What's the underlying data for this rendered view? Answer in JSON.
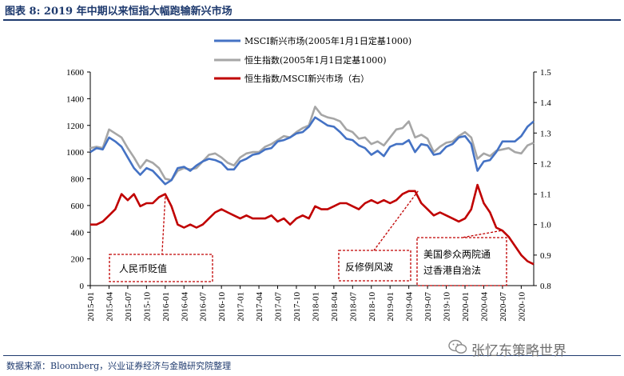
{
  "figure": {
    "title": "图表 8: 2019 年中期以来恒指大幅跑输新兴市场",
    "source": "数据来源：Bloomberg，兴业证券经济与金融研究院整理",
    "watermark": "张忆东策略世界"
  },
  "chart_data": {
    "type": "line",
    "title": "",
    "xlabel": "",
    "ylabel": "",
    "ylim": [
      0,
      1600
    ],
    "y2lim": [
      0.8,
      1.5
    ],
    "yticks": [
      0,
      200,
      400,
      600,
      800,
      1000,
      1200,
      1400,
      1600
    ],
    "y2ticks": [
      0.8,
      0.9,
      1.0,
      1.1,
      1.2,
      1.3,
      1.4,
      1.5
    ],
    "y2tick_labels": [
      "0.8",
      "0.9",
      "1.0",
      "1.1",
      "1.2",
      "1.3",
      "1.4",
      "1.5"
    ],
    "xticks": [
      "2015-01",
      "2015-04",
      "2015-07",
      "2015-10",
      "2016-01",
      "2016-04",
      "2016-07",
      "2016-10",
      "2017-01",
      "2017-04",
      "2017-07",
      "2017-10",
      "2018-01",
      "2018-04",
      "2018-07",
      "2018-10",
      "2019-01",
      "2019-04",
      "2019-07",
      "2019-10",
      "2020-01",
      "2020-04",
      "2020-07",
      "2020-10"
    ],
    "grid": false,
    "legend_position": "top-center",
    "colors": {
      "msci": "#4472c4",
      "hsi": "#a6a6a6",
      "ratio": "#c00000",
      "annotation": "#c00000"
    },
    "series": [
      {
        "name": "MSCI新兴市场(2005年1月1日定基1000)",
        "axis": "left",
        "x": [
          "2015-01",
          "2015-02",
          "2015-03",
          "2015-04",
          "2015-05",
          "2015-06",
          "2015-07",
          "2015-08",
          "2015-09",
          "2015-10",
          "2015-11",
          "2015-12",
          "2016-01",
          "2016-02",
          "2016-03",
          "2016-04",
          "2016-05",
          "2016-06",
          "2016-07",
          "2016-08",
          "2016-09",
          "2016-10",
          "2016-11",
          "2016-12",
          "2017-01",
          "2017-02",
          "2017-03",
          "2017-04",
          "2017-05",
          "2017-06",
          "2017-07",
          "2017-08",
          "2017-09",
          "2017-10",
          "2017-11",
          "2017-12",
          "2018-01",
          "2018-02",
          "2018-03",
          "2018-04",
          "2018-05",
          "2018-06",
          "2018-07",
          "2018-08",
          "2018-09",
          "2018-10",
          "2018-11",
          "2018-12",
          "2019-01",
          "2019-02",
          "2019-03",
          "2019-04",
          "2019-05",
          "2019-06",
          "2019-07",
          "2019-08",
          "2019-09",
          "2019-10",
          "2019-11",
          "2019-12",
          "2020-01",
          "2020-02",
          "2020-03",
          "2020-04",
          "2020-05",
          "2020-06",
          "2020-07",
          "2020-08",
          "2020-09",
          "2020-10",
          "2020-11",
          "2020-12"
        ],
        "values": [
          1000,
          1030,
          1020,
          1110,
          1080,
          1040,
          960,
          880,
          830,
          880,
          860,
          810,
          760,
          790,
          880,
          890,
          860,
          900,
          930,
          950,
          940,
          920,
          870,
          870,
          930,
          950,
          980,
          990,
          1020,
          1030,
          1080,
          1090,
          1110,
          1140,
          1150,
          1190,
          1260,
          1230,
          1200,
          1190,
          1150,
          1100,
          1090,
          1050,
          1030,
          980,
          1010,
          970,
          1040,
          1060,
          1060,
          1090,
          1000,
          1060,
          1050,
          980,
          990,
          1040,
          1060,
          1110,
          1120,
          1060,
          860,
          930,
          940,
          1000,
          1080,
          1080,
          1080,
          1120,
          1190,
          1230
        ]
      },
      {
        "name": "恒生指数(2005年1月1日定基1000)",
        "axis": "left",
        "x": [
          "2015-01",
          "2015-02",
          "2015-03",
          "2015-04",
          "2015-05",
          "2015-06",
          "2015-07",
          "2015-08",
          "2015-09",
          "2015-10",
          "2015-11",
          "2015-12",
          "2016-01",
          "2016-02",
          "2016-03",
          "2016-04",
          "2016-05",
          "2016-06",
          "2016-07",
          "2016-08",
          "2016-09",
          "2016-10",
          "2016-11",
          "2016-12",
          "2017-01",
          "2017-02",
          "2017-03",
          "2017-04",
          "2017-05",
          "2017-06",
          "2017-07",
          "2017-08",
          "2017-09",
          "2017-10",
          "2017-11",
          "2017-12",
          "2018-01",
          "2018-02",
          "2018-03",
          "2018-04",
          "2018-05",
          "2018-06",
          "2018-07",
          "2018-08",
          "2018-09",
          "2018-10",
          "2018-11",
          "2018-12",
          "2019-01",
          "2019-02",
          "2019-03",
          "2019-04",
          "2019-05",
          "2019-06",
          "2019-07",
          "2019-08",
          "2019-09",
          "2019-10",
          "2019-11",
          "2019-12",
          "2020-01",
          "2020-02",
          "2020-03",
          "2020-04",
          "2020-05",
          "2020-06",
          "2020-07",
          "2020-08",
          "2020-09",
          "2020-10",
          "2020-11",
          "2020-12"
        ],
        "values": [
          1030,
          1040,
          1030,
          1170,
          1140,
          1110,
          1030,
          960,
          880,
          940,
          920,
          880,
          800,
          790,
          860,
          880,
          870,
          880,
          930,
          980,
          990,
          960,
          920,
          900,
          960,
          990,
          1000,
          1000,
          1040,
          1060,
          1090,
          1120,
          1110,
          1150,
          1180,
          1200,
          1340,
          1280,
          1260,
          1250,
          1230,
          1170,
          1150,
          1100,
          1110,
          1060,
          1080,
          1050,
          1110,
          1170,
          1180,
          1230,
          1110,
          1130,
          1100,
          1000,
          1040,
          1070,
          1080,
          1120,
          1150,
          1110,
          950,
          990,
          970,
          1010,
          1020,
          1030,
          1000,
          990,
          1050,
          1070
        ]
      },
      {
        "name": "恒生指数/MSCI新兴市场（右）",
        "axis": "right",
        "x": [
          "2015-01",
          "2015-02",
          "2015-03",
          "2015-04",
          "2015-05",
          "2015-06",
          "2015-07",
          "2015-08",
          "2015-09",
          "2015-10",
          "2015-11",
          "2015-12",
          "2016-01",
          "2016-02",
          "2016-03",
          "2016-04",
          "2016-05",
          "2016-06",
          "2016-07",
          "2016-08",
          "2016-09",
          "2016-10",
          "2016-11",
          "2016-12",
          "2017-01",
          "2017-02",
          "2017-03",
          "2017-04",
          "2017-05",
          "2017-06",
          "2017-07",
          "2017-08",
          "2017-09",
          "2017-10",
          "2017-11",
          "2017-12",
          "2018-01",
          "2018-02",
          "2018-03",
          "2018-04",
          "2018-05",
          "2018-06",
          "2018-07",
          "2018-08",
          "2018-09",
          "2018-10",
          "2018-11",
          "2018-12",
          "2019-01",
          "2019-02",
          "2019-03",
          "2019-04",
          "2019-05",
          "2019-06",
          "2019-07",
          "2019-08",
          "2019-09",
          "2019-10",
          "2019-11",
          "2019-12",
          "2020-01",
          "2020-02",
          "2020-03",
          "2020-04",
          "2020-05",
          "2020-06",
          "2020-07",
          "2020-08",
          "2020-09",
          "2020-10",
          "2020-11",
          "2020-12"
        ],
        "values": [
          1.0,
          1.0,
          1.01,
          1.03,
          1.05,
          1.1,
          1.08,
          1.1,
          1.06,
          1.07,
          1.07,
          1.09,
          1.1,
          1.06,
          1.0,
          0.99,
          1.0,
          0.99,
          1.0,
          1.02,
          1.04,
          1.05,
          1.04,
          1.03,
          1.02,
          1.03,
          1.02,
          1.02,
          1.02,
          1.03,
          1.01,
          1.02,
          1.0,
          1.02,
          1.03,
          1.02,
          1.06,
          1.05,
          1.05,
          1.06,
          1.07,
          1.07,
          1.06,
          1.05,
          1.07,
          1.08,
          1.07,
          1.08,
          1.07,
          1.08,
          1.1,
          1.11,
          1.11,
          1.07,
          1.05,
          1.03,
          1.04,
          1.03,
          1.02,
          1.01,
          1.02,
          1.05,
          1.13,
          1.07,
          1.04,
          0.99,
          0.98,
          0.96,
          0.93,
          0.9,
          0.88,
          0.87
        ]
      }
    ],
    "annotations": [
      {
        "text": "人民币贬值",
        "points_to": "2016-01"
      },
      {
        "text": "反修例风波",
        "points_to": "2019-06"
      },
      {
        "text": "美国参众两院通",
        "text2": "过香港自治法",
        "points_to": "2020-07"
      }
    ]
  }
}
